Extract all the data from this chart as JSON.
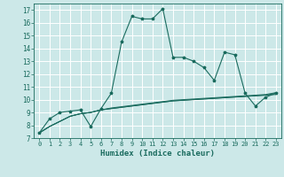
{
  "title": "",
  "xlabel": "Humidex (Indice chaleur)",
  "ylabel": "",
  "bg_color": "#cce8e8",
  "grid_color": "#ffffff",
  "line_color": "#1a6b5e",
  "xlim": [
    -0.5,
    23.5
  ],
  "ylim": [
    7,
    17.5
  ],
  "xticks": [
    0,
    1,
    2,
    3,
    4,
    5,
    6,
    7,
    8,
    9,
    10,
    11,
    12,
    13,
    14,
    15,
    16,
    17,
    18,
    19,
    20,
    21,
    22,
    23
  ],
  "yticks": [
    7,
    8,
    9,
    10,
    11,
    12,
    13,
    14,
    15,
    16,
    17
  ],
  "main_series": [
    7.4,
    8.5,
    9.0,
    9.1,
    9.2,
    7.9,
    9.3,
    10.5,
    14.5,
    16.5,
    16.3,
    16.3,
    17.1,
    13.3,
    13.3,
    13.0,
    12.5,
    11.5,
    13.7,
    13.5,
    10.5,
    9.5,
    10.2,
    10.5
  ],
  "flat_lines": [
    [
      7.4,
      7.9,
      8.3,
      8.7,
      8.9,
      9.0,
      9.2,
      9.3,
      9.4,
      9.5,
      9.6,
      9.7,
      9.8,
      9.9,
      9.95,
      10.0,
      10.05,
      10.1,
      10.15,
      10.2,
      10.25,
      10.3,
      10.35,
      10.4
    ],
    [
      7.4,
      7.9,
      8.3,
      8.7,
      8.9,
      9.0,
      9.2,
      9.3,
      9.4,
      9.5,
      9.6,
      9.7,
      9.8,
      9.9,
      9.95,
      10.0,
      10.05,
      10.1,
      10.15,
      10.2,
      10.25,
      10.3,
      10.35,
      10.5
    ],
    [
      7.4,
      7.9,
      8.3,
      8.7,
      8.9,
      9.0,
      9.2,
      9.35,
      9.45,
      9.55,
      9.65,
      9.75,
      9.85,
      9.95,
      10.0,
      10.05,
      10.1,
      10.15,
      10.2,
      10.25,
      10.3,
      10.35,
      10.4,
      10.55
    ]
  ]
}
